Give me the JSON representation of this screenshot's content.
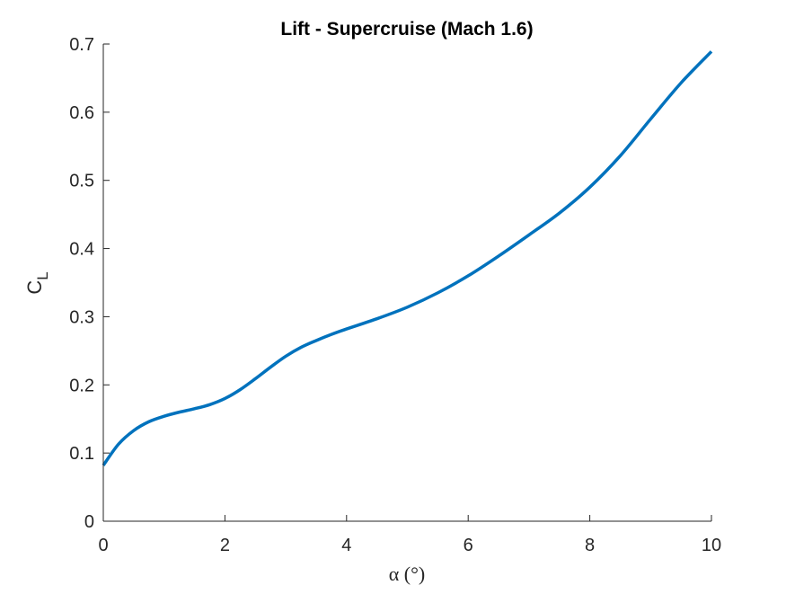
{
  "chart_data": {
    "type": "line",
    "title": "Lift - Supercruise (Mach 1.6)",
    "xlabel": "α (°)",
    "ylabel": {
      "main": "C",
      "subscript": "L"
    },
    "xlim": [
      0,
      10
    ],
    "ylim": [
      0,
      0.7
    ],
    "xticks": [
      0,
      2,
      4,
      6,
      8,
      10
    ],
    "yticks": [
      0,
      0.1,
      0.2,
      0.3,
      0.4,
      0.5,
      0.6,
      0.7
    ],
    "xtick_labels": [
      "0",
      "2",
      "4",
      "6",
      "8",
      "10"
    ],
    "ytick_labels": [
      "0",
      "0.1",
      "0.2",
      "0.3",
      "0.4",
      "0.5",
      "0.6",
      "0.7"
    ],
    "grid": false,
    "color": "#0072BD",
    "series": [
      {
        "x": [
          0,
          0.25,
          0.5,
          0.75,
          1,
          1.25,
          1.5,
          1.75,
          2,
          2.25,
          2.5,
          2.75,
          3,
          3.25,
          3.5,
          3.75,
          4,
          4.5,
          5,
          5.5,
          6,
          6.5,
          7,
          7.5,
          8,
          8.5,
          9,
          9.5,
          10
        ],
        "y": [
          0.082,
          0.113,
          0.133,
          0.146,
          0.154,
          0.16,
          0.165,
          0.171,
          0.18,
          0.193,
          0.209,
          0.226,
          0.242,
          0.255,
          0.265,
          0.274,
          0.282,
          0.297,
          0.314,
          0.335,
          0.36,
          0.389,
          0.42,
          0.452,
          0.49,
          0.536,
          0.59,
          0.643,
          0.689
        ]
      }
    ]
  }
}
